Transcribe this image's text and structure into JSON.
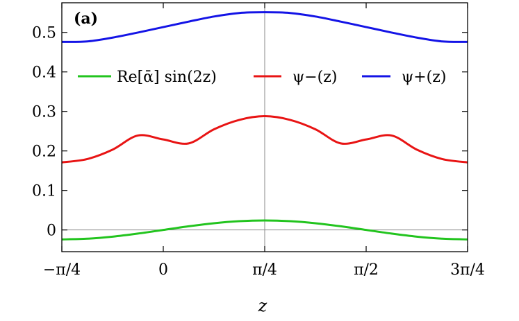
{
  "chart_data": {
    "type": "line",
    "panel_label": "(a)",
    "xlabel": "z",
    "ylabel": "",
    "xlim": [
      -0.7853981634,
      2.3561944902
    ],
    "ylim": [
      -0.055,
      0.575
    ],
    "x_ticks": [
      {
        "value": -0.7853981634,
        "label": "−π/4"
      },
      {
        "value": 0,
        "label": "0"
      },
      {
        "value": 0.7853981634,
        "label": "π/4"
      },
      {
        "value": 1.5707963268,
        "label": "π/2"
      },
      {
        "value": 2.3561944902,
        "label": "3π/4"
      }
    ],
    "y_ticks": [
      {
        "value": 0,
        "label": "0"
      },
      {
        "value": 0.1,
        "label": "0.1"
      },
      {
        "value": 0.2,
        "label": "0.2"
      },
      {
        "value": 0.3,
        "label": "0.3"
      },
      {
        "value": 0.4,
        "label": "0.4"
      },
      {
        "value": 0.5,
        "label": "0.5"
      }
    ],
    "reference_lines": {
      "vertical_x": 0.7853981634,
      "horizontal_y": 0
    },
    "legend_placement": "center",
    "series": [
      {
        "name": "Re[ᾱ] sin(2z)",
        "color": "#22c41e",
        "x": [
          -0.7854,
          -0.589,
          -0.3927,
          -0.1963,
          0,
          0.1963,
          0.3927,
          0.589,
          0.7854,
          0.9817,
          1.1781,
          1.3744,
          1.5708,
          1.7671,
          1.9635,
          2.1598,
          2.3562
        ],
        "y": [
          -0.024,
          -0.0222,
          -0.017,
          -0.0092,
          0,
          0.0092,
          0.017,
          0.0222,
          0.024,
          0.0222,
          0.017,
          0.0092,
          0,
          -0.0092,
          -0.017,
          -0.0222,
          -0.024
        ]
      },
      {
        "name": "ψ−(z)",
        "color": "#e81414",
        "x": [
          -0.7854,
          -0.589,
          -0.3927,
          -0.1963,
          0,
          0.1963,
          0.3927,
          0.589,
          0.7854,
          0.9817,
          1.1781,
          1.3744,
          1.5708,
          1.7671,
          1.9635,
          2.1598,
          2.3562
        ],
        "y": [
          0.171,
          0.1794,
          0.2032,
          0.239,
          0.229,
          0.219,
          0.2548,
          0.2786,
          0.288,
          0.2786,
          0.2548,
          0.219,
          0.229,
          0.239,
          0.2032,
          0.1794,
          0.171
        ]
      },
      {
        "name": "ψ+(z)",
        "color": "#1414e6",
        "x": [
          -0.7854,
          -0.589,
          -0.3927,
          -0.1963,
          0,
          0.1963,
          0.3927,
          0.589,
          0.7854,
          0.9817,
          1.1781,
          1.3744,
          1.5708,
          1.7671,
          1.9635,
          2.1598,
          2.3562
        ],
        "y": [
          0.476,
          0.4771,
          0.4868,
          0.4997,
          0.5135,
          0.5273,
          0.5402,
          0.5492,
          0.551,
          0.5492,
          0.5402,
          0.5273,
          0.5135,
          0.4997,
          0.4868,
          0.4771,
          0.476
        ]
      }
    ]
  }
}
